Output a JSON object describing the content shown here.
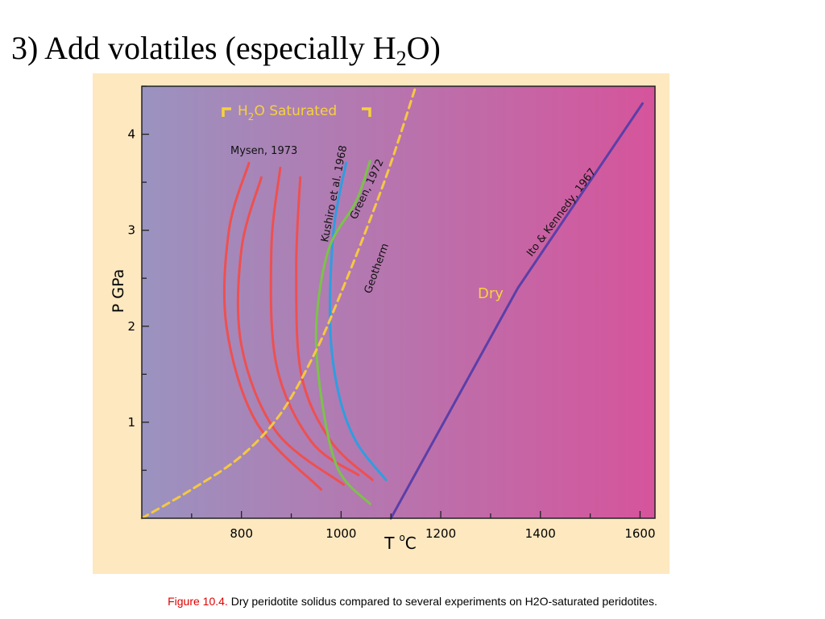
{
  "slide": {
    "title_main": "3) Add volatiles (especially H",
    "title_sub": "2",
    "title_end": "O)"
  },
  "caption": {
    "label": "Figure 10.4.",
    "text": " Dry peridotite solidus compared to several experiments on H2O-saturated peridotites."
  },
  "colors": {
    "panel_bg": "#fde8c0",
    "gradient_left": "#9a93c0",
    "gradient_right": "#d6549b",
    "mysen": "#ee5050",
    "kushiro": "#2e9ee0",
    "green": "#7cc24a",
    "geotherm": "#f5c842",
    "dry": "#5b3fa8",
    "annotation_yellow": "#f7d23a"
  },
  "chart_data": {
    "type": "line",
    "xlabel_main": "T",
    "xlabel_deg": "o",
    "xlabel_unit": "C",
    "ylabel": "P GPa",
    "xlim": [
      600,
      1630
    ],
    "ylim": [
      0,
      4.5
    ],
    "xticks": [
      800,
      1000,
      1200,
      1400,
      1600
    ],
    "yticks": [
      1,
      2,
      3,
      4
    ],
    "grid": false,
    "annotations": {
      "saturated_pre": "H",
      "saturated_sub": "2",
      "saturated_post": "O Saturated",
      "mysen": "Mysen, 1973",
      "kushiro": "Kushiro et al. 1968",
      "green": "Green, 1972",
      "geotherm": "Geotherm",
      "dry": "Dry",
      "ito": "Ito & Kennedy, 1967"
    },
    "series": [
      {
        "id": "mysen-1",
        "group": "mysen",
        "x": [
          815,
          775,
          770,
          830,
          960
        ],
        "y": [
          3.7,
          3.0,
          2.0,
          1.0,
          0.3
        ]
      },
      {
        "id": "mysen-2",
        "group": "mysen",
        "x": [
          840,
          800,
          800,
          870,
          1005
        ],
        "y": [
          3.55,
          2.8,
          1.8,
          0.9,
          0.35
        ]
      },
      {
        "id": "mysen-3",
        "group": "mysen",
        "x": [
          878,
          860,
          870,
          940,
          1035
        ],
        "y": [
          3.65,
          2.8,
          1.6,
          0.8,
          0.45
        ]
      },
      {
        "id": "mysen-4",
        "group": "mysen",
        "x": [
          918,
          910,
          920,
          980,
          1063
        ],
        "y": [
          3.55,
          2.6,
          1.5,
          0.8,
          0.4
        ]
      },
      {
        "id": "kushiro",
        "group": "kushiro",
        "x": [
          1010,
          985,
          978,
          995,
          1030,
          1090
        ],
        "y": [
          3.7,
          3.0,
          2.0,
          1.3,
          0.8,
          0.4
        ]
      },
      {
        "id": "green-1972",
        "group": "green",
        "x": [
          1058,
          1030,
          975,
          950,
          962,
          995,
          1058
        ],
        "y": [
          3.72,
          3.3,
          2.8,
          2.0,
          1.2,
          0.5,
          0.15
        ]
      },
      {
        "id": "geotherm",
        "group": "geotherm",
        "x": [
          600,
          700,
          800,
          880,
          950,
          1000,
          1050,
          1100,
          1150
        ],
        "y": [
          0.0,
          0.3,
          0.65,
          1.1,
          1.75,
          2.35,
          3.0,
          3.7,
          4.5
        ],
        "dashed": true
      },
      {
        "id": "dry-ito-kennedy",
        "group": "dry",
        "x": [
          1100,
          1355,
          1605
        ],
        "y": [
          0.0,
          2.4,
          4.32
        ]
      }
    ]
  }
}
